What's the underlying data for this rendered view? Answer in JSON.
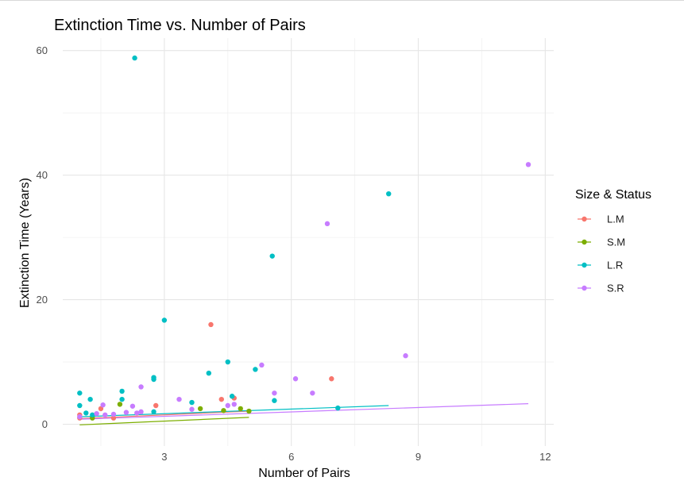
{
  "chart_data": {
    "type": "scatter",
    "title": "Extinction Time vs. Number of Pairs",
    "xlabel": "Number of Pairs",
    "ylabel": "Extinction Time (Years)",
    "xlim": [
      0.6,
      12.2
    ],
    "ylim": [
      -3.5,
      62
    ],
    "x_ticks": [
      3,
      6,
      9,
      12
    ],
    "y_ticks": [
      0,
      20,
      40,
      60
    ],
    "x_tick_labels": [
      "3",
      "6",
      "9",
      "12"
    ],
    "y_tick_labels": [
      "0",
      "20",
      "40",
      "60"
    ],
    "grid": true,
    "legend": {
      "title": "Size & Status",
      "position": "right"
    },
    "series": [
      {
        "name": "L.M",
        "color": "#F8766D",
        "points": [
          [
            1,
            1.5
          ],
          [
            1,
            1.0
          ],
          [
            1.5,
            2.5
          ],
          [
            1.8,
            1.0
          ],
          [
            2.8,
            3.0
          ],
          [
            4.1,
            16.0
          ],
          [
            4.35,
            4.0
          ],
          [
            4.65,
            4.2
          ],
          [
            6.95,
            7.3
          ]
        ],
        "trend": {
          "x": [
            1,
            5
          ],
          "y": [
            0.9,
            2.1
          ]
        }
      },
      {
        "name": "S.M",
        "color": "#7CAE00",
        "points": [
          [
            1.3,
            1.0
          ],
          [
            1.95,
            3.2
          ],
          [
            3.85,
            2.5
          ],
          [
            4.4,
            2.2
          ],
          [
            4.8,
            2.5
          ],
          [
            5.0,
            2.1
          ]
        ],
        "trend": {
          "x": [
            1,
            5
          ],
          "y": [
            -0.1,
            1.1
          ]
        }
      },
      {
        "name": "L.R",
        "color": "#00BFC4",
        "points": [
          [
            1,
            5.0
          ],
          [
            1,
            3.0
          ],
          [
            1.15,
            1.8
          ],
          [
            1.25,
            4.0
          ],
          [
            1.3,
            1.5
          ],
          [
            2.0,
            5.3
          ],
          [
            2.0,
            4.0
          ],
          [
            2.3,
            58.8
          ],
          [
            2.75,
            7.5
          ],
          [
            2.75,
            7.2
          ],
          [
            2.75,
            2.0
          ],
          [
            3.0,
            16.7
          ],
          [
            3.65,
            3.5
          ],
          [
            4.05,
            8.2
          ],
          [
            4.5,
            10.0
          ],
          [
            4.6,
            4.5
          ],
          [
            5.15,
            8.8
          ],
          [
            5.55,
            27.0
          ],
          [
            5.6,
            3.8
          ],
          [
            7.1,
            2.6
          ],
          [
            8.3,
            37.0
          ]
        ],
        "trend": {
          "x": [
            1,
            8.3
          ],
          "y": [
            1.2,
            3.0
          ]
        }
      },
      {
        "name": "S.R",
        "color": "#C77CFF",
        "points": [
          [
            1,
            1.2
          ],
          [
            1.4,
            1.7
          ],
          [
            1.55,
            3.1
          ],
          [
            1.6,
            1.5
          ],
          [
            1.8,
            1.6
          ],
          [
            2.1,
            1.9
          ],
          [
            2.25,
            2.9
          ],
          [
            2.35,
            1.8
          ],
          [
            2.45,
            2.0
          ],
          [
            2.45,
            6.0
          ],
          [
            3.35,
            4.0
          ],
          [
            3.65,
            2.4
          ],
          [
            4.5,
            3.0
          ],
          [
            4.65,
            3.2
          ],
          [
            5.3,
            9.5
          ],
          [
            5.6,
            5.0
          ],
          [
            6.1,
            7.3
          ],
          [
            6.5,
            5.0
          ],
          [
            6.85,
            32.2
          ],
          [
            8.7,
            11.0
          ],
          [
            11.6,
            41.7
          ]
        ],
        "trend": {
          "x": [
            1,
            11.6
          ],
          "y": [
            0.8,
            3.3
          ]
        }
      }
    ]
  }
}
